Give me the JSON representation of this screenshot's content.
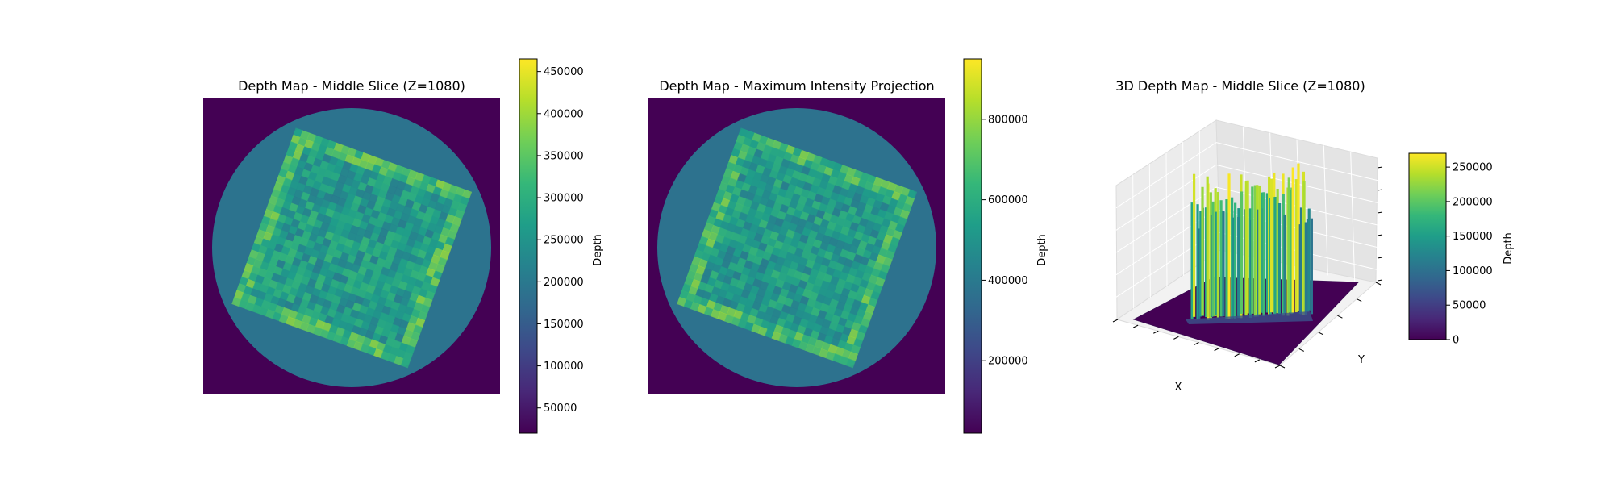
{
  "chart_data": [
    {
      "type": "heatmap",
      "title": "Depth Map - Middle Slice (Z=1080)",
      "colormap": "viridis",
      "colorbar": {
        "label": "Depth",
        "range": [
          20000,
          465000
        ],
        "ticks": [
          50000,
          100000,
          150000,
          200000,
          250000,
          300000,
          350000,
          400000,
          450000
        ],
        "tick_labels": [
          "50000",
          "100000",
          "150000",
          "200000",
          "250000",
          "300000",
          "350000",
          "400000",
          "450000"
        ]
      },
      "background_value": 20000,
      "disk_value": 190000,
      "square_mean_value": 260000,
      "square_edge_value": 340000,
      "square_rotation_deg": 20
    },
    {
      "type": "heatmap",
      "title": "Depth Map - Maximum Intensity Projection",
      "colormap": "viridis",
      "colorbar": {
        "label": "Depth",
        "range": [
          20000,
          950000
        ],
        "ticks": [
          200000,
          400000,
          600000,
          800000
        ],
        "tick_labels": [
          "200000",
          "400000",
          "600000",
          "800000"
        ]
      },
      "background_value": 20000,
      "disk_value": 370000,
      "square_mean_value": 520000,
      "square_edge_value": 680000,
      "square_rotation_deg": 20
    },
    {
      "type": "surface3d",
      "title": "3D Depth Map - Middle Slice (Z=1080)",
      "xlabel": "X",
      "ylabel": "Y",
      "colormap": "viridis",
      "colorbar": {
        "label": "Depth",
        "range": [
          0,
          270000
        ],
        "ticks": [
          0,
          50000,
          100000,
          150000,
          200000,
          250000
        ],
        "tick_labels": [
          "0",
          "50000",
          "100000",
          "150000",
          "200000",
          "250000"
        ]
      },
      "floor_value": 0,
      "spike_value_range": [
        100000,
        270000
      ]
    }
  ]
}
